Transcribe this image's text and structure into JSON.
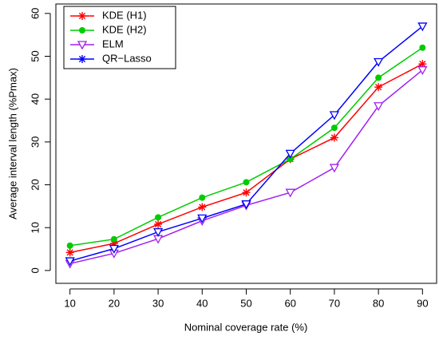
{
  "chart_data": {
    "type": "line",
    "x_label": "Nominal coverage rate (%)",
    "y_label": "Average interval length (%Pmax)",
    "x": [
      10,
      20,
      30,
      40,
      50,
      60,
      70,
      80,
      90
    ],
    "xlim": [
      6.8,
      93.2
    ],
    "xticks": [
      10,
      20,
      30,
      40,
      50,
      60,
      70,
      80,
      90
    ],
    "ylim": [
      -3,
      62.2
    ],
    "yticks": [
      0,
      10,
      20,
      30,
      40,
      50,
      60
    ],
    "legend": "top-left",
    "series": [
      {
        "name": "KDE (H1)",
        "color": "#ff0000",
        "marker": "asterisk",
        "legend_marker": "asterisk",
        "values": [
          4.2,
          6.3,
          10.8,
          14.8,
          18.2,
          26,
          31,
          42.8,
          48.2
        ]
      },
      {
        "name": "KDE (H2)",
        "color": "#00cc00",
        "marker": "circle",
        "legend_marker": "circle",
        "values": [
          5.8,
          7.3,
          12.4,
          17,
          20.6,
          26,
          33.3,
          45,
          52
        ]
      },
      {
        "name": "ELM",
        "color": "#a020f0",
        "marker": "triangle-down",
        "legend_marker": "triangle-down",
        "values": [
          1.6,
          4,
          7.4,
          11.6,
          15.2,
          18.2,
          24,
          38.4,
          46.8
        ]
      },
      {
        "name": "QR−Lasso",
        "color": "#0000ff",
        "marker": "triangle-down",
        "legend_marker": "asterisk",
        "values": [
          2.2,
          5.1,
          9,
          12.2,
          15.5,
          27.3,
          36.3,
          48.7,
          57
        ]
      }
    ]
  }
}
